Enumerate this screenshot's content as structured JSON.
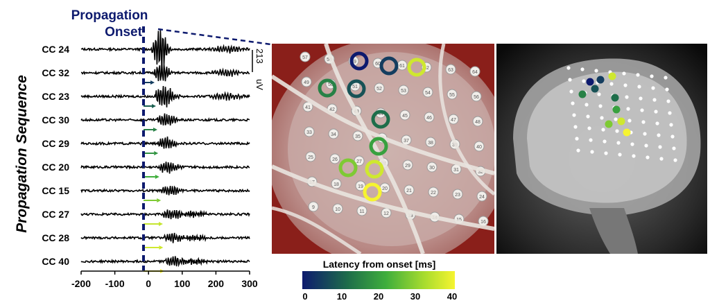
{
  "title": {
    "line1": "Propagation",
    "line2": "Onset"
  },
  "y_axis_label": "Propagation Sequence",
  "channels": [
    {
      "label": "CC 24",
      "latency": 0
    },
    {
      "label": "CC 32",
      "latency": 5
    },
    {
      "label": "CC 23",
      "latency": 10
    },
    {
      "label": "CC 30",
      "latency": 15
    },
    {
      "label": "CC 29",
      "latency": 18
    },
    {
      "label": "CC 20",
      "latency": 22
    },
    {
      "label": "CC 15",
      "latency": 28
    },
    {
      "label": "CC 27",
      "latency": 35
    },
    {
      "label": "CC 28",
      "latency": 36
    },
    {
      "label": "CC 40",
      "latency": 40
    }
  ],
  "x_ticks": [
    "-200",
    "-100",
    "0",
    "100",
    "200",
    "300"
  ],
  "scale_bar": {
    "value": "213",
    "unit": "uV"
  },
  "colorbar": {
    "title": "Latency from onset [ms]",
    "ticks": [
      "0",
      "10",
      "20",
      "30",
      "40"
    ],
    "colors": [
      "#0d1a6e",
      "#1e8f3a",
      "#4ec34a",
      "#f6f430"
    ]
  },
  "electrode_numbers": [
    "57",
    "49",
    "41",
    "33",
    "25",
    "17",
    "9",
    "58",
    "50",
    "42",
    "34",
    "26",
    "18",
    "10",
    "59",
    "51",
    "43",
    "35",
    "27",
    "19",
    "11",
    "60",
    "52",
    "44",
    "36",
    "28",
    "20",
    "12",
    "61",
    "53",
    "45",
    "37",
    "29",
    "21",
    "13",
    "62",
    "54",
    "46",
    "38",
    "30",
    "22",
    "14",
    "63",
    "55",
    "47",
    "39",
    "31",
    "23",
    "15",
    "64",
    "56",
    "48",
    "40",
    "32",
    "24",
    "16"
  ],
  "accent": {
    "onset_line": "#0d1a6e",
    "trace": "#000000"
  }
}
